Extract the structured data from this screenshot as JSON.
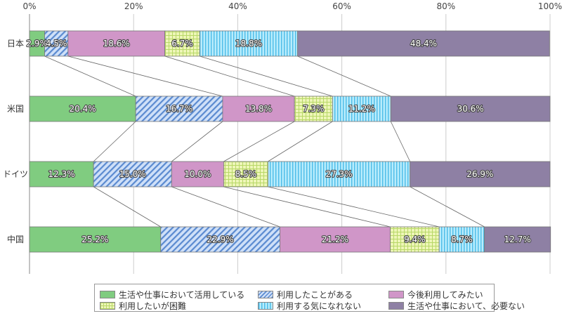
{
  "chart_data": {
    "type": "bar",
    "orientation": "horizontal",
    "stacked": true,
    "categories": [
      "日本",
      "米国",
      "ドイツ",
      "中国"
    ],
    "xlim": [
      0,
      100
    ],
    "x_ticks": [
      "0%",
      "20%",
      "40%",
      "60%",
      "80%",
      "100%"
    ],
    "grid": true,
    "legend_position": "bottom",
    "series": [
      {
        "name": "生活や仕事において活用している",
        "values": [
          2.9,
          20.4,
          12.3,
          25.2
        ],
        "color": "#80cc80",
        "pattern": "solid"
      },
      {
        "name": "利用したことがある",
        "values": [
          4.5,
          16.7,
          15.0,
          22.9
        ],
        "color": "#b4d0f4",
        "pattern": "diagonal"
      },
      {
        "name": "今後利用してみたい",
        "values": [
          18.6,
          13.8,
          10.0,
          21.2
        ],
        "color": "#d096c8",
        "pattern": "solid"
      },
      {
        "name": "利用したいが困難",
        "values": [
          6.7,
          7.3,
          8.5,
          9.4
        ],
        "color": "#eaf4b0",
        "pattern": "grid"
      },
      {
        "name": "利用する気になれない",
        "values": [
          18.8,
          11.2,
          27.3,
          8.7
        ],
        "color": "#b0e6fa",
        "pattern": "vertical"
      },
      {
        "name": "生活や仕事において、必要ない",
        "values": [
          48.4,
          30.6,
          26.9,
          12.7
        ],
        "color": "#8e80a4",
        "pattern": "solid"
      }
    ],
    "labels": [
      [
        "2.9%",
        "4.5%",
        "18.6%",
        "6.7%",
        "18.8%",
        "48.4%"
      ],
      [
        "20.4%",
        "16.7%",
        "13.8%",
        "7.3%",
        "11.2%",
        "30.6%"
      ],
      [
        "12.3%",
        "15.0%",
        "10.0%",
        "8.5%",
        "27.3%",
        "26.9%"
      ],
      [
        "25.2%",
        "22.9%",
        "21.2%",
        "9.4%",
        "8.7%",
        "12.7%"
      ]
    ]
  }
}
